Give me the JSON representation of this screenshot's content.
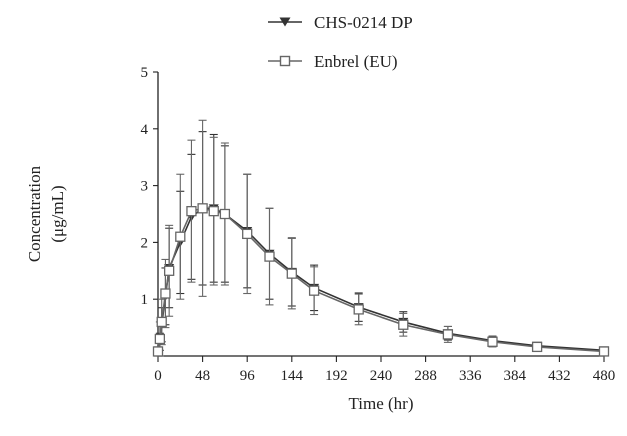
{
  "chart_data": {
    "type": "line",
    "xlabel": "Time (hr)",
    "ylabel_lines": [
      "Concentration",
      "(μg/mL)"
    ],
    "xlim": [
      0,
      480
    ],
    "ylim": [
      0,
      5
    ],
    "xticks": [
      0,
      48,
      96,
      144,
      192,
      240,
      288,
      336,
      384,
      432,
      480
    ],
    "yticks": [
      1,
      2,
      3,
      4,
      5
    ],
    "grid": false,
    "legend_position": "top-center",
    "series": [
      {
        "name": "CHS-0214 DP",
        "marker": "filled-triangle-down",
        "color": "#333333",
        "x": [
          0,
          2,
          4,
          8,
          12,
          24,
          36,
          48,
          60,
          72,
          96,
          120,
          144,
          168,
          216,
          264,
          312,
          360,
          408,
          480
        ],
        "y": [
          0.05,
          0.25,
          0.55,
          1.05,
          1.55,
          2.0,
          2.45,
          2.6,
          2.6,
          2.5,
          2.2,
          1.8,
          1.48,
          1.2,
          0.86,
          0.6,
          0.4,
          0.27,
          0.18,
          0.1
        ],
        "err": [
          0.05,
          0.15,
          0.3,
          0.5,
          0.7,
          0.9,
          1.1,
          1.35,
          1.3,
          1.2,
          1.0,
          0.8,
          0.6,
          0.4,
          0.25,
          0.18,
          0.12,
          0.08,
          0.05,
          0.04
        ]
      },
      {
        "name": "Enbrel (EU)",
        "marker": "open-square",
        "color": "#666666",
        "x": [
          0,
          2,
          4,
          8,
          12,
          24,
          36,
          48,
          60,
          72,
          96,
          120,
          144,
          168,
          216,
          264,
          312,
          360,
          408,
          480
        ],
        "y": [
          0.08,
          0.3,
          0.6,
          1.1,
          1.5,
          2.1,
          2.55,
          2.6,
          2.55,
          2.5,
          2.15,
          1.75,
          1.45,
          1.15,
          0.82,
          0.55,
          0.38,
          0.25,
          0.16,
          0.08
        ],
        "err": [
          0.08,
          0.3,
          0.4,
          0.6,
          0.8,
          1.1,
          1.25,
          1.55,
          1.3,
          1.25,
          1.05,
          0.85,
          0.62,
          0.42,
          0.27,
          0.2,
          0.14,
          0.09,
          0.05,
          0.04
        ]
      }
    ]
  }
}
